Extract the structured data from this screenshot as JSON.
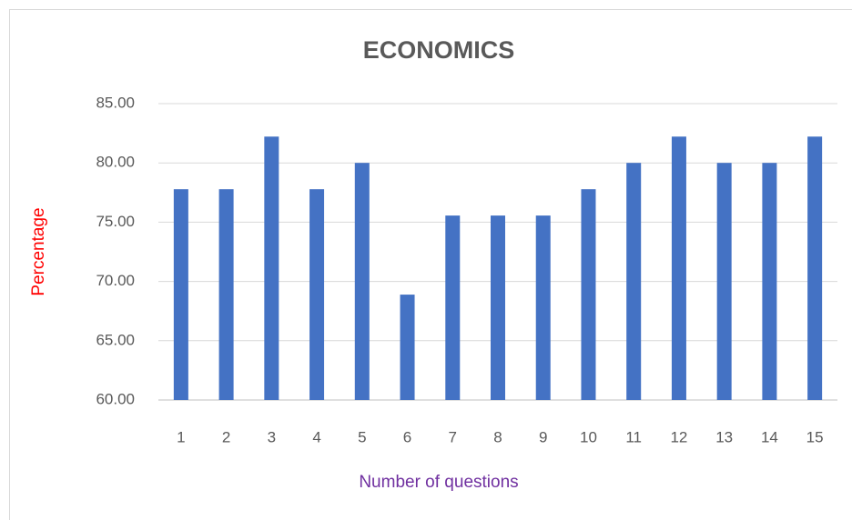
{
  "chart_data": {
    "type": "bar",
    "title": "ECONOMICS",
    "x_label": "Number of questions",
    "y_label": "Percentage",
    "categories": [
      "1",
      "2",
      "3",
      "4",
      "5",
      "6",
      "7",
      "8",
      "9",
      "10",
      "11",
      "12",
      "13",
      "14",
      "15"
    ],
    "values": [
      77.78,
      77.78,
      82.22,
      77.78,
      80.0,
      68.89,
      75.56,
      75.56,
      75.56,
      77.78,
      80.0,
      82.22,
      80.0,
      80.0,
      82.22
    ],
    "color": "#4472c4",
    "ylim": [
      60,
      85
    ],
    "yticks": [
      {
        "value": 60,
        "label": "60.00"
      },
      {
        "value": 65,
        "label": "65.00"
      },
      {
        "value": 70,
        "label": "70.00"
      },
      {
        "value": 75,
        "label": "75.00"
      },
      {
        "value": 80,
        "label": "80.00"
      },
      {
        "value": 85,
        "label": "85.00"
      }
    ],
    "grid": true
  }
}
